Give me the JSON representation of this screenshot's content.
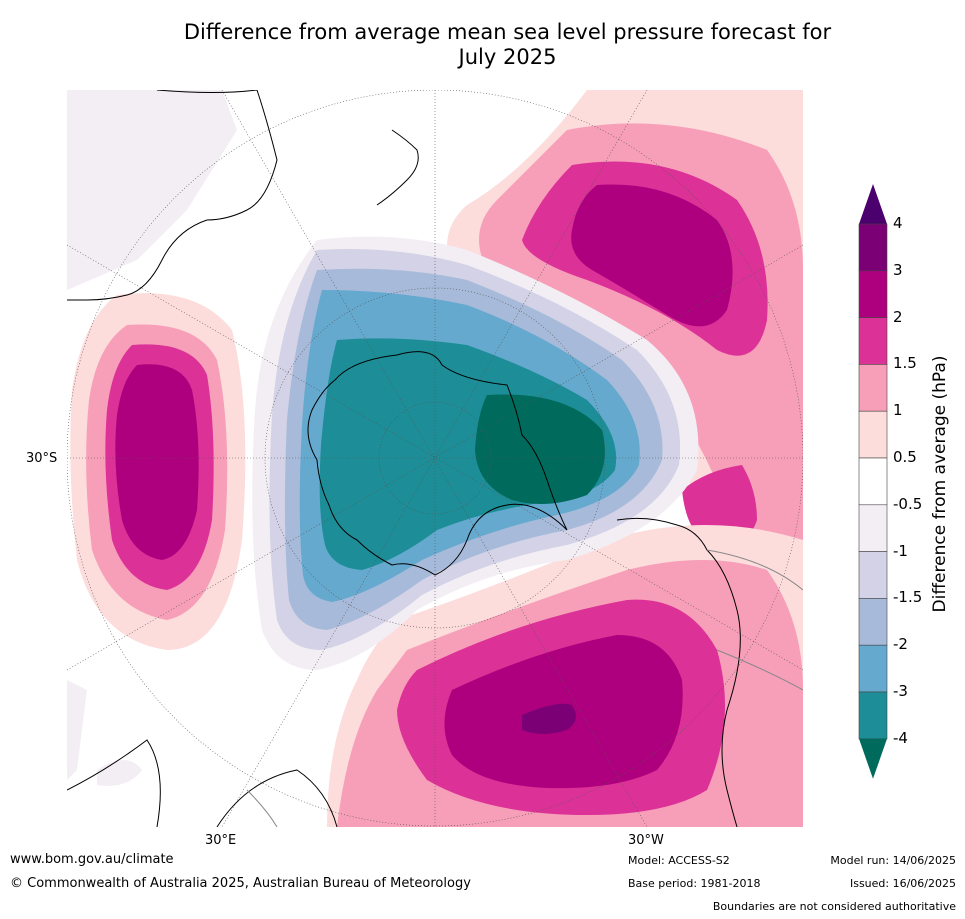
{
  "title_line1": "Difference from average mean sea level pressure forecast for",
  "title_line2": "July 2025",
  "map": {
    "lat_label": "30°S",
    "lon_label_left": "30°E",
    "lon_label_right": "30°W"
  },
  "colorbar": {
    "title": "Difference from average (hPa)",
    "labels": [
      "4",
      "3",
      "2",
      "1.5",
      "1",
      "0.5",
      "-0.5",
      "-1",
      "-1.5",
      "-2",
      "-3",
      "-4"
    ],
    "colors": [
      "#7b0076",
      "#ae007e",
      "#dc3297",
      "#f79fb8",
      "#fddcdc",
      "#ffffff",
      "#f3eef4",
      "#d3d2e6",
      "#a7bad9",
      "#65a9cf",
      "#1d8e97",
      "#006b5c"
    ]
  },
  "footer": {
    "url": "www.bom.gov.au/climate",
    "copyright": "© Commonwealth of Australia 2025, Australian Bureau of Meteorology",
    "model": "Model: ACCESS-S2",
    "base_period": "Base period: 1981-2018",
    "model_run": "Model run: 14/06/2025",
    "issued": "Issued: 16/06/2025",
    "disclaimer": "Boundaries are not considered authoritative"
  }
}
